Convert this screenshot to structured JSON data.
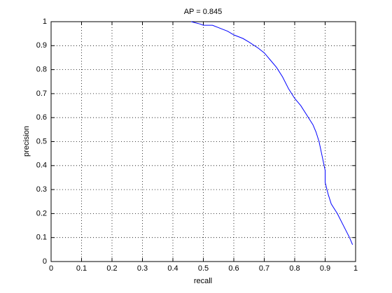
{
  "chart_data": {
    "type": "line",
    "title": "AP = 0.845",
    "xlabel": "recall",
    "ylabel": "precision",
    "x": [
      0.46,
      0.49,
      0.5,
      0.53,
      0.55,
      0.58,
      0.6,
      0.63,
      0.65,
      0.68,
      0.7,
      0.72,
      0.74,
      0.76,
      0.78,
      0.8,
      0.82,
      0.84,
      0.86,
      0.87,
      0.88,
      0.89,
      0.9,
      0.9,
      0.91,
      0.92,
      0.94,
      0.96,
      0.98,
      0.99
    ],
    "values": [
      1.0,
      0.99,
      0.985,
      0.985,
      0.975,
      0.96,
      0.945,
      0.93,
      0.915,
      0.89,
      0.87,
      0.84,
      0.81,
      0.77,
      0.72,
      0.68,
      0.65,
      0.61,
      0.57,
      0.54,
      0.5,
      0.44,
      0.38,
      0.33,
      0.28,
      0.24,
      0.2,
      0.15,
      0.1,
      0.07
    ],
    "color": "#0000ff",
    "xlim": [
      0,
      1
    ],
    "ylim": [
      0,
      1
    ],
    "xticks": [
      0,
      0.1,
      0.2,
      0.3,
      0.4,
      0.5,
      0.6,
      0.7,
      0.8,
      0.9,
      1
    ],
    "yticks": [
      0,
      0.1,
      0.2,
      0.3,
      0.4,
      0.5,
      0.6,
      0.7,
      0.8,
      0.9,
      1
    ],
    "grid": true
  }
}
